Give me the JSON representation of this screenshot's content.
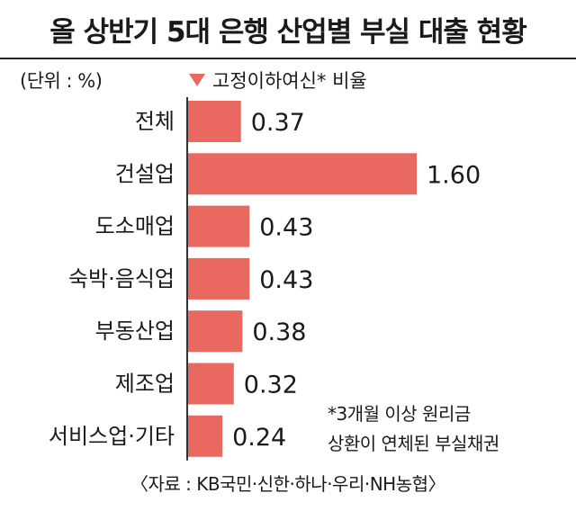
{
  "title": "올 상반기 5대 은행 산업별 부실 대출 현황",
  "unit": "(단위 : %)",
  "legend_label": "고정이하여신* 비율",
  "colors": {
    "bar": "#e9685f",
    "legend_marker": "#e9685f"
  },
  "footnote": [
    "*3개월 이상 원리금",
    "상환이 연체된 부실채권"
  ],
  "source": "〈자료 : KB국민·신한·하나·우리·NH농협〉",
  "chart_data": {
    "type": "bar",
    "orientation": "horizontal",
    "categories": [
      "전체",
      "건설업",
      "도소매업",
      "숙박·음식업",
      "부동산업",
      "제조업",
      "서비스업·기타"
    ],
    "values": [
      0.37,
      1.6,
      0.43,
      0.43,
      0.38,
      0.32,
      0.24
    ],
    "value_labels": [
      "0.37",
      "1.60",
      "0.43",
      "0.43",
      "0.38",
      "0.32",
      "0.24"
    ],
    "xlim": [
      0,
      1.6
    ],
    "grid": false
  }
}
